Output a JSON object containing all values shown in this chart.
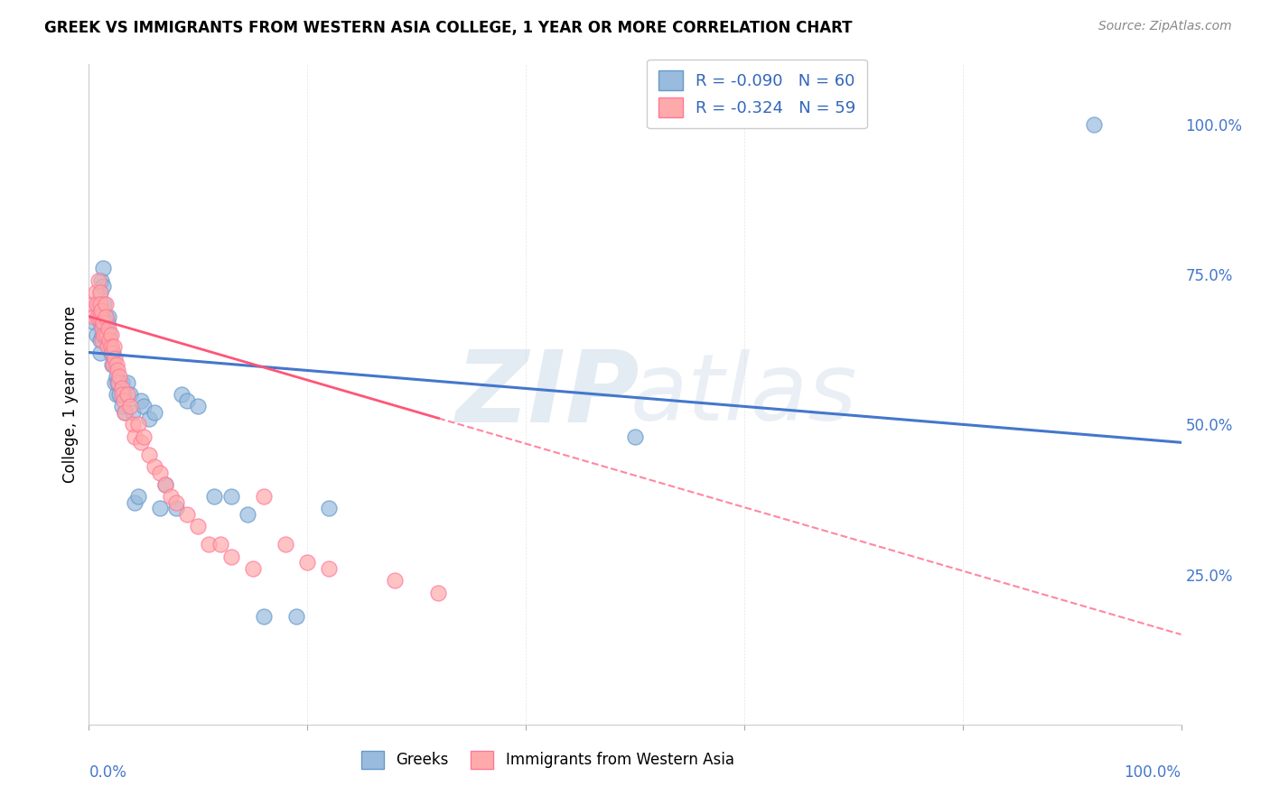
{
  "title": "GREEK VS IMMIGRANTS FROM WESTERN ASIA COLLEGE, 1 YEAR OR MORE CORRELATION CHART",
  "source": "Source: ZipAtlas.com",
  "ylabel": "College, 1 year or more",
  "right_yticks": [
    "25.0%",
    "50.0%",
    "75.0%",
    "100.0%"
  ],
  "right_ytick_vals": [
    0.25,
    0.5,
    0.75,
    1.0
  ],
  "legend_label1": "Greeks",
  "legend_label2": "Immigrants from Western Asia",
  "R1": -0.09,
  "N1": 60,
  "R2": -0.324,
  "N2": 59,
  "color_blue": "#99BBDD",
  "color_pink": "#FFAAAA",
  "edge_blue": "#6699CC",
  "edge_pink": "#FF7799",
  "line_blue": "#4477CC",
  "line_pink": "#FF5577",
  "greeks_x": [
    0.005,
    0.007,
    0.008,
    0.009,
    0.01,
    0.01,
    0.01,
    0.01,
    0.01,
    0.011,
    0.012,
    0.012,
    0.013,
    0.013,
    0.014,
    0.015,
    0.015,
    0.015,
    0.016,
    0.017,
    0.018,
    0.018,
    0.019,
    0.02,
    0.02,
    0.021,
    0.022,
    0.023,
    0.024,
    0.025,
    0.025,
    0.026,
    0.028,
    0.03,
    0.03,
    0.032,
    0.033,
    0.035,
    0.038,
    0.04,
    0.042,
    0.045,
    0.048,
    0.05,
    0.055,
    0.06,
    0.065,
    0.07,
    0.08,
    0.085,
    0.09,
    0.1,
    0.115,
    0.13,
    0.145,
    0.16,
    0.19,
    0.22,
    0.5,
    0.92
  ],
  "greeks_y": [
    0.67,
    0.65,
    0.7,
    0.68,
    0.72,
    0.7,
    0.67,
    0.64,
    0.62,
    0.74,
    0.68,
    0.65,
    0.76,
    0.73,
    0.7,
    0.66,
    0.64,
    0.68,
    0.65,
    0.67,
    0.63,
    0.68,
    0.65,
    0.63,
    0.62,
    0.6,
    0.62,
    0.6,
    0.57,
    0.58,
    0.55,
    0.57,
    0.55,
    0.57,
    0.53,
    0.55,
    0.52,
    0.57,
    0.55,
    0.52,
    0.37,
    0.38,
    0.54,
    0.53,
    0.51,
    0.52,
    0.36,
    0.4,
    0.36,
    0.55,
    0.54,
    0.53,
    0.38,
    0.38,
    0.35,
    0.18,
    0.18,
    0.36,
    0.48,
    1.0
  ],
  "immigrants_x": [
    0.004,
    0.005,
    0.006,
    0.007,
    0.008,
    0.009,
    0.01,
    0.01,
    0.01,
    0.011,
    0.012,
    0.012,
    0.013,
    0.014,
    0.015,
    0.015,
    0.016,
    0.017,
    0.018,
    0.019,
    0.02,
    0.02,
    0.021,
    0.022,
    0.023,
    0.024,
    0.025,
    0.026,
    0.027,
    0.028,
    0.03,
    0.03,
    0.032,
    0.033,
    0.035,
    0.038,
    0.04,
    0.042,
    0.045,
    0.048,
    0.05,
    0.055,
    0.06,
    0.065,
    0.07,
    0.075,
    0.08,
    0.09,
    0.1,
    0.11,
    0.12,
    0.13,
    0.15,
    0.16,
    0.18,
    0.2,
    0.22,
    0.28,
    0.32
  ],
  "immigrants_y": [
    0.7,
    0.68,
    0.72,
    0.7,
    0.68,
    0.74,
    0.72,
    0.7,
    0.68,
    0.69,
    0.66,
    0.64,
    0.67,
    0.65,
    0.7,
    0.68,
    0.65,
    0.63,
    0.66,
    0.64,
    0.65,
    0.63,
    0.62,
    0.6,
    0.63,
    0.61,
    0.6,
    0.59,
    0.57,
    0.58,
    0.56,
    0.55,
    0.54,
    0.52,
    0.55,
    0.53,
    0.5,
    0.48,
    0.5,
    0.47,
    0.48,
    0.45,
    0.43,
    0.42,
    0.4,
    0.38,
    0.37,
    0.35,
    0.33,
    0.3,
    0.3,
    0.28,
    0.26,
    0.38,
    0.3,
    0.27,
    0.26,
    0.24,
    0.22
  ],
  "xlim": [
    0.0,
    1.0
  ],
  "ylim": [
    0.0,
    1.1
  ],
  "blue_line_x": [
    0.0,
    1.0
  ],
  "blue_line_y_start": 0.62,
  "blue_line_y_end": 0.47,
  "pink_line_x_start": 0.0,
  "pink_line_x_end": 1.0,
  "pink_line_y_start": 0.68,
  "pink_line_y_end": 0.15
}
